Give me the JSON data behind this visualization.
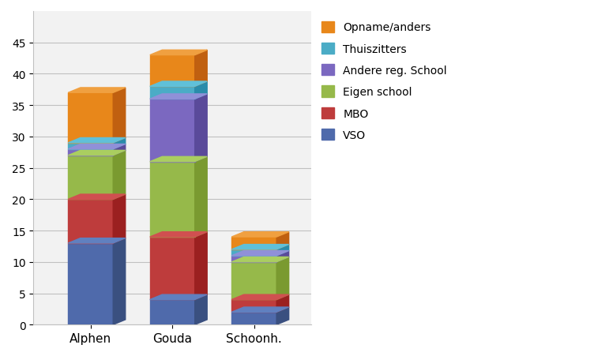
{
  "categories": [
    "Alphen",
    "Gouda",
    "Schoonh."
  ],
  "series": {
    "VSO": [
      13,
      4,
      2
    ],
    "MBO": [
      7,
      10,
      2
    ],
    "Eigen school": [
      7,
      12,
      6
    ],
    "Andere reg. School": [
      1,
      10,
      1
    ],
    "Thuiszitters": [
      1,
      2,
      1
    ],
    "Opname/anders": [
      8,
      5,
      2
    ]
  },
  "colors": {
    "VSO": "#4F6AAB",
    "MBO": "#BE3C3C",
    "Eigen school": "#96B94A",
    "Andere reg. School": "#7B68C0",
    "Thuiszitters": "#4BACC6",
    "Opname/anders": "#E8871A"
  },
  "dark_colors": {
    "VSO": "#3A5080",
    "MBO": "#9B2020",
    "Eigen school": "#7A9A30",
    "Andere reg. School": "#5A4A9A",
    "Thuiszitters": "#2A8CAA",
    "Opname/anders": "#C06010"
  },
  "top_colors": {
    "VSO": "#6080C0",
    "MBO": "#D05050",
    "Eigen school": "#AACE60",
    "Andere reg. School": "#9090D8",
    "Thuiszitters": "#60C0D8",
    "Opname/anders": "#F0A040"
  },
  "ylim": [
    0,
    50
  ],
  "yticks": [
    0,
    5,
    10,
    15,
    20,
    25,
    30,
    35,
    40,
    45
  ],
  "legend_order": [
    "Opname/anders",
    "Thuiszitters",
    "Andere reg. School",
    "Eigen school",
    "MBO",
    "VSO"
  ],
  "bar_width": 0.55,
  "depth": 0.15,
  "figsize": [
    7.52,
    4.52
  ],
  "dpi": 100,
  "bg_color": "#F2F2F2",
  "grid_color": "#C0C0C0"
}
